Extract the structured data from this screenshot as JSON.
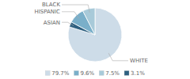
{
  "chart_data": {
    "type": "pie",
    "categories": [
      "WHITE",
      "ASIAN",
      "HISPANIC",
      "BLACK"
    ],
    "values": [
      79.7,
      3.1,
      9.6,
      7.5
    ],
    "value_labels": [
      "79.7%",
      "3.1%",
      "9.6%",
      "7.5%"
    ],
    "colors": [
      "#cddce8",
      "#2e6080",
      "#7aafc9",
      "#a8cad9"
    ],
    "legend": "bottom"
  }
}
